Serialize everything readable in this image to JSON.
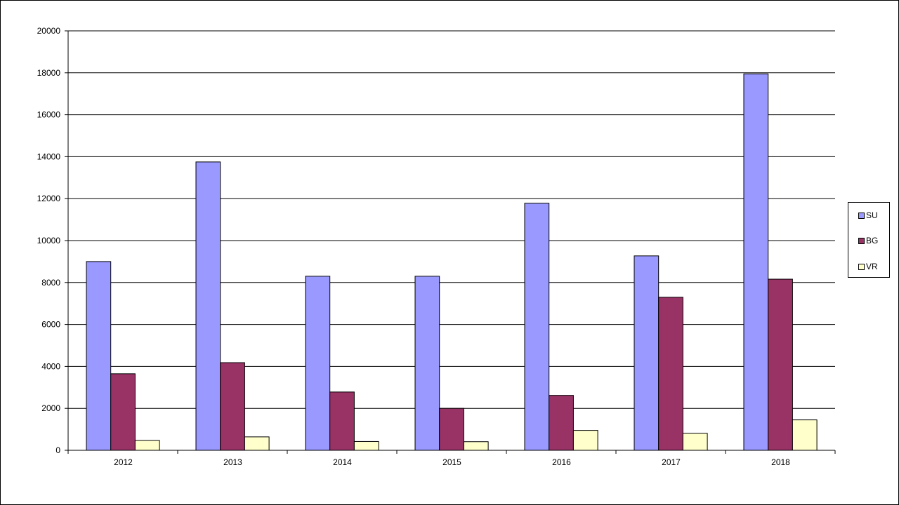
{
  "chart_data": {
    "type": "bar",
    "categories": [
      "2012",
      "2013",
      "2014",
      "2015",
      "2016",
      "2017",
      "2018"
    ],
    "series": [
      {
        "name": "SU",
        "color": "#9999ff",
        "values": [
          9000,
          13750,
          8300,
          8300,
          11780,
          9270,
          17950
        ]
      },
      {
        "name": "BG",
        "color": "#993366",
        "values": [
          3650,
          4180,
          2780,
          2000,
          2620,
          7300,
          8160
        ]
      },
      {
        "name": "VR",
        "color": "#ffffcc",
        "values": [
          470,
          640,
          420,
          410,
          950,
          810,
          1450
        ]
      }
    ],
    "ylim": [
      0,
      20000
    ],
    "yticks": [
      "0",
      "2000",
      "4000",
      "6000",
      "8000",
      "10000",
      "12000",
      "14000",
      "16000",
      "18000",
      "20000"
    ],
    "grid": true,
    "legend_position": "right"
  }
}
